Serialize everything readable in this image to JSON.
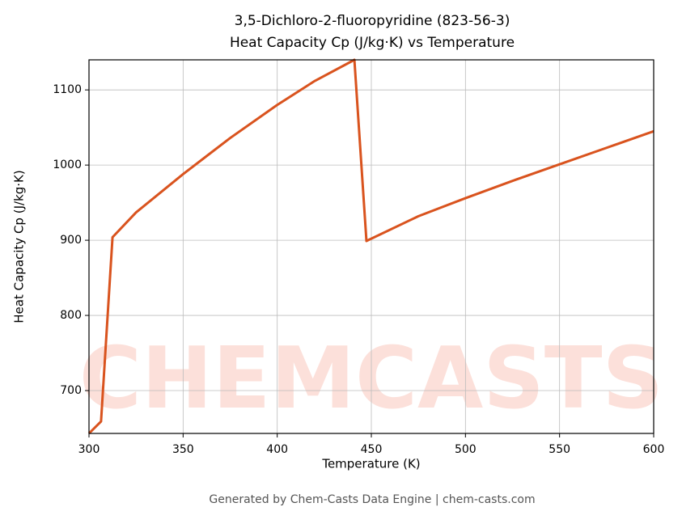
{
  "chart_data": {
    "type": "line",
    "title": "3,5-Dichloro-2-fluoropyridine (823-56-3)",
    "subtitle": "Heat Capacity Cp (J/kg·K) vs Temperature",
    "x_label": "Temperature (K)",
    "y_label": "Heat Capacity Cp (J/kg·K)",
    "watermark": "CHEMCASTS",
    "footer": "Generated by Chem-Casts Data Engine | chem-casts.com",
    "x": [
      300,
      306.4,
      312.5,
      325,
      350,
      375,
      400,
      420,
      441,
      447.4,
      475,
      500,
      525,
      550,
      575,
      600
    ],
    "series": [
      {
        "name": "Cp",
        "color": "#d9531e",
        "values": [
          643,
          659,
          904,
          937,
          988,
          1036,
          1080,
          1112,
          1140,
          899,
          932,
          956,
          979,
          1001,
          1023,
          1045
        ]
      }
    ],
    "xlim": [
      300,
      600
    ],
    "ylim": [
      643,
      1140
    ],
    "xticks": [
      300,
      350,
      400,
      450,
      500,
      550,
      600
    ],
    "yticks": [
      700,
      800,
      900,
      1000,
      1100
    ],
    "grid": true
  }
}
